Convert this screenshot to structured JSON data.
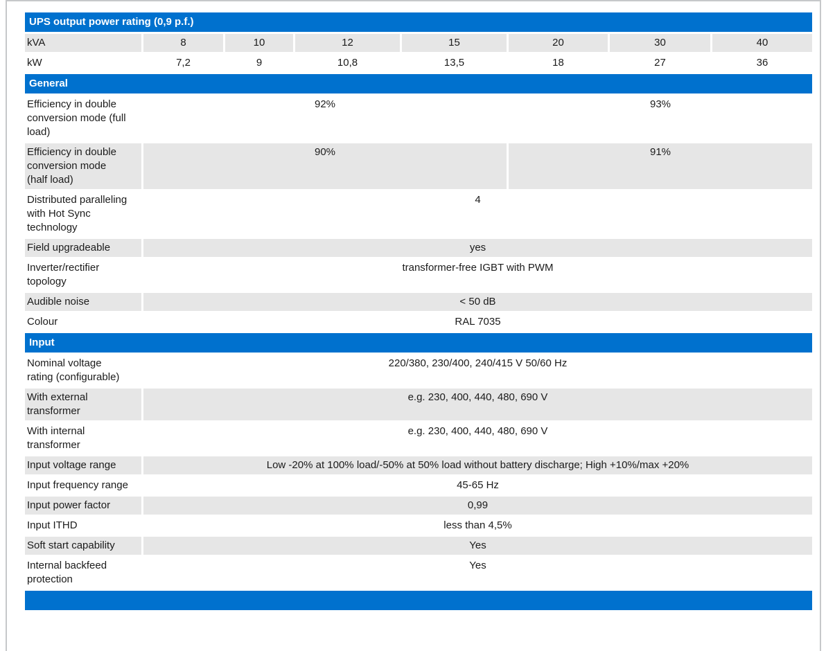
{
  "theme": {
    "header_bg": "#0071ce",
    "header_text": "#ffffff",
    "shaded_cell_bg": "#e6e6e6",
    "body_text": "#1b1b1b",
    "frame_border": "#c6c8ca"
  },
  "spec_table": {
    "sections": [
      {
        "title": "UPS output power rating (0,9 p.f.)",
        "rows": [
          {
            "label": "kVA",
            "shaded": true,
            "values": [
              {
                "text": "8",
                "span": 1
              },
              {
                "text": "10",
                "span": 1
              },
              {
                "text": "12",
                "span": 1
              },
              {
                "text": "15",
                "span": 1
              },
              {
                "text": "20",
                "span": 1
              },
              {
                "text": "30",
                "span": 1
              },
              {
                "text": "40",
                "span": 1
              }
            ]
          },
          {
            "label": "kW",
            "shaded": false,
            "values": [
              {
                "text": "7,2",
                "span": 1
              },
              {
                "text": "9",
                "span": 1
              },
              {
                "text": "10,8",
                "span": 1
              },
              {
                "text": "13,5",
                "span": 1
              },
              {
                "text": "18",
                "span": 1
              },
              {
                "text": "27",
                "span": 1
              },
              {
                "text": "36",
                "span": 1
              }
            ]
          }
        ]
      },
      {
        "title": "General",
        "rows": [
          {
            "label": "Efficiency in double conversion mode (full load)",
            "shaded": false,
            "values": [
              {
                "text": "92%",
                "span": 4
              },
              {
                "text": "93%",
                "span": 3
              }
            ]
          },
          {
            "label": "Efficiency in double conversion mode (half load)",
            "shaded": true,
            "values": [
              {
                "text": "90%",
                "span": 4
              },
              {
                "text": "91%",
                "span": 3
              }
            ]
          },
          {
            "label": "Distributed paralleling with Hot Sync technology",
            "shaded": false,
            "values": [
              {
                "text": "4",
                "span": 7
              }
            ]
          },
          {
            "label": "Field upgradeable",
            "shaded": true,
            "values": [
              {
                "text": "yes",
                "span": 7
              }
            ]
          },
          {
            "label": "Inverter/rectifier topology",
            "shaded": false,
            "values": [
              {
                "text": "transformer-free IGBT with PWM",
                "span": 7
              }
            ]
          },
          {
            "label": "Audible noise",
            "shaded": true,
            "values": [
              {
                "text": "< 50 dB",
                "span": 7
              }
            ]
          },
          {
            "label": "Colour",
            "shaded": false,
            "values": [
              {
                "text": "RAL 7035",
                "span": 7
              }
            ]
          }
        ]
      },
      {
        "title": "Input",
        "rows": [
          {
            "label": "Nominal voltage rating (configurable)",
            "shaded": false,
            "values": [
              {
                "text": "220/380, 230/400, 240/415 V 50/60 Hz",
                "span": 7
              }
            ]
          },
          {
            "label": "With external transformer",
            "shaded": true,
            "values": [
              {
                "text": "e.g. 230, 400, 440, 480, 690 V",
                "span": 7
              }
            ]
          },
          {
            "label": "With internal transformer",
            "shaded": false,
            "values": [
              {
                "text": "e.g. 230, 400, 440, 480, 690 V",
                "span": 7
              }
            ]
          },
          {
            "label": "Input voltage range",
            "shaded": true,
            "values": [
              {
                "text": "Low -20% at 100% load/-50% at 50% load without battery discharge; High +10%/max +20%",
                "span": 7
              }
            ]
          },
          {
            "label": "Input frequency range",
            "shaded": false,
            "values": [
              {
                "text": "45-65 Hz",
                "span": 7
              }
            ]
          },
          {
            "label": "Input power factor",
            "shaded": true,
            "values": [
              {
                "text": "0,99",
                "span": 7
              }
            ]
          },
          {
            "label": "Input ITHD",
            "shaded": false,
            "values": [
              {
                "text": "less than 4,5%",
                "span": 7
              }
            ]
          },
          {
            "label": "Soft start capability",
            "shaded": true,
            "values": [
              {
                "text": "Yes",
                "span": 7
              }
            ]
          },
          {
            "label": "Internal backfeed protection",
            "shaded": false,
            "values": [
              {
                "text": "Yes",
                "span": 7
              }
            ]
          }
        ]
      },
      {
        "title": "",
        "rows": []
      }
    ]
  }
}
